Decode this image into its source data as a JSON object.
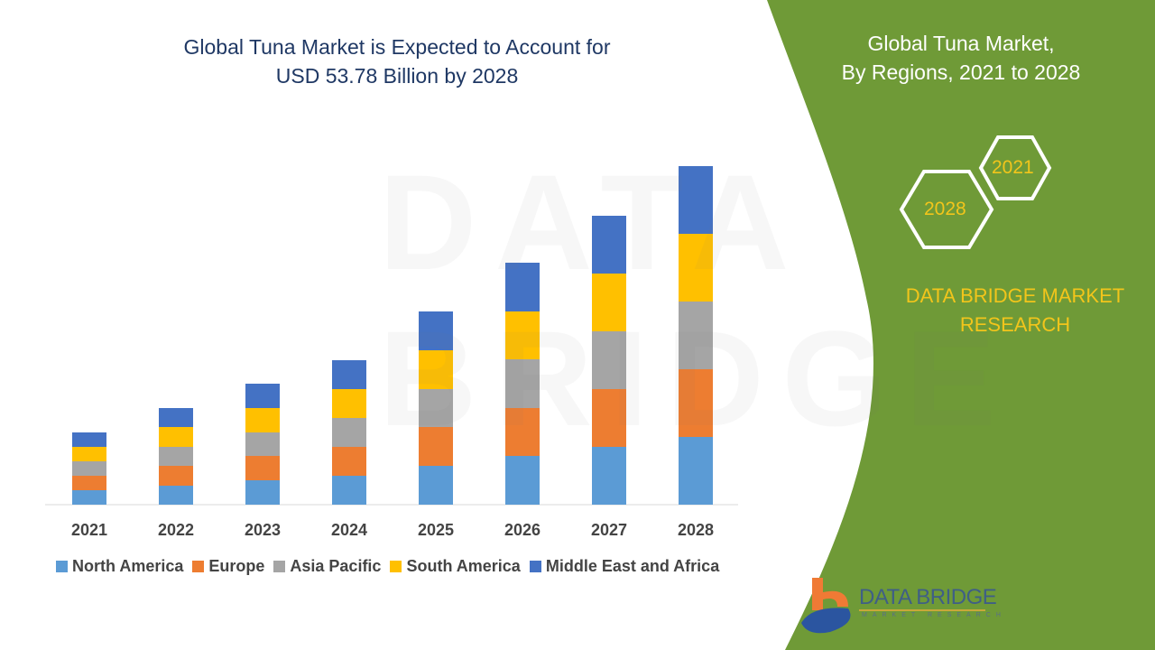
{
  "title": "Global Tuna Market is Expected to Account for USD 53.78 Billion by 2028",
  "title_line1": "Global Tuna Market is Expected to Account for",
  "title_line2": "USD 53.78 Billion by 2028",
  "side": {
    "line1": "Global Tuna Market,",
    "line2": "By Regions, 2021 to 2028",
    "hex_a": "2021",
    "hex_b": "2028",
    "brand1": "DATA BRIDGE MARKET",
    "brand2": "RESEARCH",
    "logo": "DATA BRIDGE",
    "logo_sub": "MARKET RESEARCH",
    "panel_color": "#6f9a37",
    "accent": "#f2c51b"
  },
  "chart_data": {
    "type": "bar",
    "stacked": true,
    "title": "",
    "xlabel": "",
    "ylabel": "",
    "categories": [
      "2021",
      "2022",
      "2023",
      "2024",
      "2025",
      "2026",
      "2027",
      "2028"
    ],
    "series": [
      {
        "name": "North America",
        "color": "#5b9bd5",
        "values": [
          1.6,
          2.1,
          2.7,
          3.2,
          4.3,
          5.4,
          6.4,
          7.5
        ]
      },
      {
        "name": "Europe",
        "color": "#ed7d31",
        "values": [
          1.6,
          2.2,
          2.7,
          3.2,
          4.3,
          5.3,
          6.4,
          7.5
        ]
      },
      {
        "name": "Asia Pacific",
        "color": "#a5a5a5",
        "values": [
          1.6,
          2.1,
          2.6,
          3.2,
          4.2,
          5.4,
          6.4,
          7.5
        ]
      },
      {
        "name": "South America",
        "color": "#ffc000",
        "values": [
          1.6,
          2.2,
          2.7,
          3.2,
          4.3,
          5.3,
          6.4,
          7.5
        ]
      },
      {
        "name": "Middle East and Africa",
        "color": "#4472c4",
        "values": [
          1.6,
          2.1,
          2.7,
          3.2,
          4.3,
          5.4,
          6.4,
          7.5
        ]
      }
    ],
    "note": "relative values; no y-axis printed",
    "legend": "bottom",
    "grid": false
  }
}
